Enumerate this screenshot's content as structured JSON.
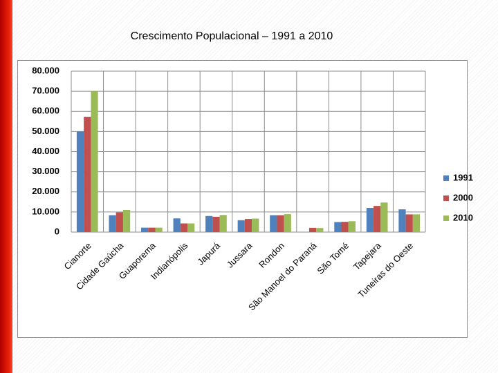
{
  "chart_data": {
    "type": "bar",
    "title": "Crescimento Populacional – 1991 a 2010",
    "categories": [
      "Cianorte",
      "Cidade Gaúcha",
      "Guaporema",
      "Indianópolis",
      "Japurá",
      "Jussara",
      "Rondon",
      "São Manoel do Paraná",
      "São Tomé",
      "Tapejara",
      "Tuneiras do Oeste"
    ],
    "series": [
      {
        "name": "1991",
        "color": "#4f81bd",
        "values": [
          50000,
          8400,
          2200,
          6800,
          8000,
          5900,
          8400,
          null,
          5000,
          12000,
          11300
        ]
      },
      {
        "name": "2000",
        "color": "#c0504d",
        "values": [
          57300,
          9800,
          2200,
          4300,
          7600,
          6500,
          8400,
          2100,
          5100,
          13000,
          8800
        ]
      },
      {
        "name": "2010",
        "color": "#9bbb59",
        "values": [
          70000,
          11000,
          2200,
          4300,
          8500,
          6700,
          8900,
          2000,
          5400,
          14700,
          8800
        ]
      }
    ],
    "ylim": [
      0,
      80000
    ],
    "yticks": [
      0,
      {
        "value": 10000,
        "label": "10.000"
      },
      {
        "value": 20000,
        "label": "20.000"
      },
      {
        "value": 30000,
        "label": "30.000"
      },
      {
        "value": 40000,
        "label": "40.000"
      },
      {
        "value": 50000,
        "label": "50.000"
      },
      {
        "value": 60000,
        "label": "60.000"
      },
      {
        "value": 70000,
        "label": "70.000"
      },
      {
        "value": 80000,
        "label": "80.000"
      }
    ],
    "grid": true,
    "legend": "right"
  }
}
